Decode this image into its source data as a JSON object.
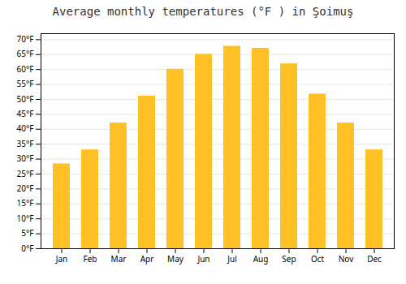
{
  "chart_data": {
    "type": "bar",
    "title": "Average monthly temperatures (°F ) in Şoimuş",
    "categories": [
      "Jan",
      "Feb",
      "Mar",
      "Apr",
      "May",
      "Jun",
      "Jul",
      "Aug",
      "Sep",
      "Oct",
      "Nov",
      "Dec"
    ],
    "values": [
      28.4,
      33.1,
      42.1,
      51.1,
      60.1,
      65.1,
      67.8,
      67.1,
      61.9,
      51.8,
      42.1,
      33.1
    ],
    "color": "#FFC125",
    "ylim": [
      0,
      72
    ],
    "yticks": [
      {
        "value": 0,
        "label": "0°F"
      },
      {
        "value": 5,
        "label": "5°F"
      },
      {
        "value": 10,
        "label": "10°F"
      },
      {
        "value": 15,
        "label": "15°F"
      },
      {
        "value": 20,
        "label": "20°F"
      },
      {
        "value": 25,
        "label": "25°F"
      },
      {
        "value": 30,
        "label": "30°F"
      },
      {
        "value": 35,
        "label": "35°F"
      },
      {
        "value": 40,
        "label": "40°F"
      },
      {
        "value": 45,
        "label": "45°F"
      },
      {
        "value": 50,
        "label": "50°F"
      },
      {
        "value": 55,
        "label": "55°F"
      },
      {
        "value": 60,
        "label": "60°F"
      },
      {
        "value": 65,
        "label": "65°F"
      },
      {
        "value": 70,
        "label": "70°F"
      }
    ],
    "grid": true
  }
}
